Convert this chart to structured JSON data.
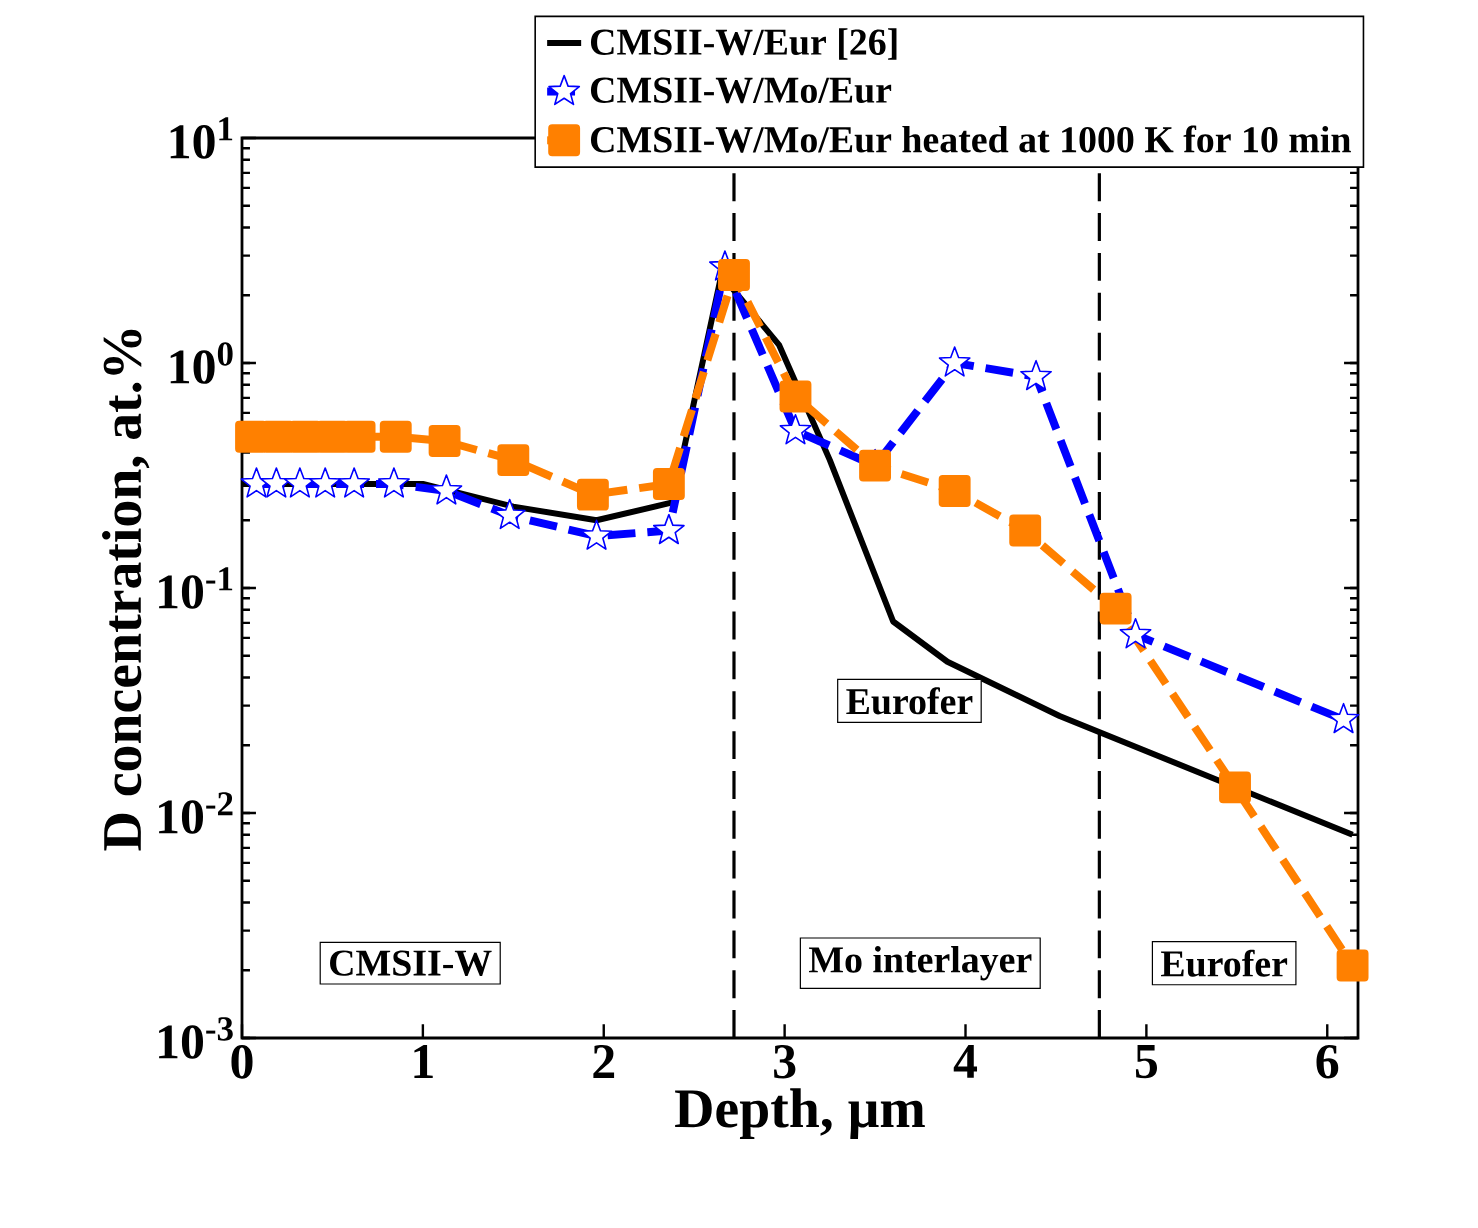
{
  "chart_data": {
    "type": "line",
    "xlabel": "Depth, μm",
    "ylabel": "D concentration, at.%",
    "xlim": [
      0,
      6.17
    ],
    "xticks": [
      0,
      1,
      2,
      3,
      4,
      5,
      6
    ],
    "ylim": [
      0.001,
      10
    ],
    "log": "y",
    "yticks": [
      {
        "value": 0.001,
        "label": "10$^{-3}$"
      },
      {
        "value": 0.01,
        "label": "10$^{-2}$"
      },
      {
        "value": 0.1,
        "label": "10$^{-1}$"
      },
      {
        "value": 1,
        "label": "10$^{0}$"
      },
      {
        "value": 10,
        "label": "10$^{1}$"
      }
    ],
    "legend": "top right",
    "grid": false,
    "series": [
      {
        "name": "CMSII-W/Eur [26]",
        "color": "#000000",
        "marker": "none",
        "line_style": "solid",
        "x": [
          0,
          1.0,
          1.5,
          1.96,
          2.38,
          2.65,
          2.97,
          3.25,
          3.6,
          3.9,
          4.52,
          6.14
        ],
        "values": [
          0.29,
          0.29,
          0.23,
          0.2,
          0.24,
          2.46,
          1.2,
          0.37,
          0.071,
          0.047,
          0.027,
          0.008
        ]
      },
      {
        "name": "CMSII-W/Mo/Eur",
        "color": "#0000ff",
        "marker": "star",
        "line_style": "dashed",
        "x": [
          0.08,
          0.19,
          0.32,
          0.46,
          0.62,
          0.84,
          1.13,
          1.48,
          1.96,
          2.36,
          2.67,
          3.06,
          3.5,
          3.94,
          4.39,
          4.94,
          6.09
        ],
        "values": [
          0.29,
          0.29,
          0.29,
          0.29,
          0.29,
          0.29,
          0.27,
          0.21,
          0.17,
          0.18,
          2.67,
          0.5,
          0.35,
          1.0,
          0.87,
          0.062,
          0.026
        ]
      },
      {
        "name": "CMSII-W/Mo/Eur heated at 1000 K for 10 min",
        "color": "#ff8000",
        "marker": "square",
        "line_style": "dashed",
        "x": [
          0.05,
          0.2,
          0.35,
          0.5,
          0.65,
          0.85,
          1.12,
          1.5,
          1.94,
          2.36,
          2.72,
          3.06,
          3.5,
          3.94,
          4.33,
          4.83,
          5.49,
          6.14
        ],
        "values": [
          0.47,
          0.47,
          0.47,
          0.47,
          0.47,
          0.47,
          0.45,
          0.37,
          0.26,
          0.29,
          2.46,
          0.71,
          0.35,
          0.27,
          0.18,
          0.081,
          0.013,
          0.0021
        ]
      }
    ],
    "ref_lines": [
      {
        "axis": "x",
        "value": 2.72,
        "color": "#000000",
        "line_style": "dashed"
      },
      {
        "axis": "x",
        "value": 4.74,
        "color": "#000000",
        "line_style": "dashed"
      }
    ],
    "annotations": [
      "Eurofer",
      "CMSII-W",
      "Mo interlayer",
      "Eurofer"
    ]
  }
}
